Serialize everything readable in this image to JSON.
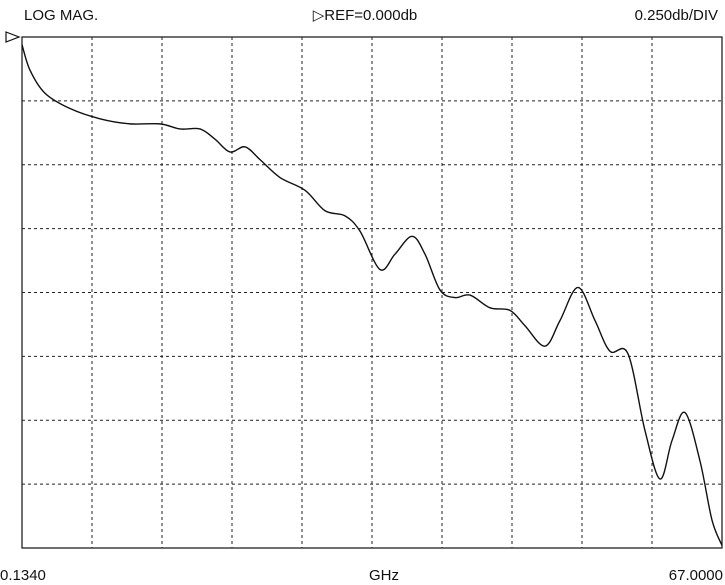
{
  "chart_data": {
    "type": "line",
    "title": "LOG MAG.",
    "reference": "▷REF=0.000db",
    "scale": "0.250db/DIV",
    "xlabel": "GHz",
    "xlim": [
      0.134,
      67.0
    ],
    "xticks": [
      {
        "value": 0.134,
        "label": "0.1340"
      },
      {
        "value": 67.0,
        "label": "67.0000"
      }
    ],
    "ylim": [
      -2.0,
      0.0
    ],
    "grid": {
      "x_divisions": 10,
      "y_divisions": 8
    },
    "color": "#111111",
    "x": [
      0.134,
      0.9,
      2.33,
      4.72,
      7.58,
      10.45,
      13.32,
      15.23,
      17.14,
      18.57,
      20.0,
      21.44,
      22.87,
      24.78,
      27.17,
      29.08,
      30.99,
      32.42,
      34.33,
      35.76,
      37.39,
      38.63,
      40.06,
      41.49,
      42.93,
      44.84,
      46.75,
      48.18,
      50.09,
      51.52,
      53.24,
      54.87,
      56.3,
      58.02,
      59.64,
      61.08,
      62.22,
      63.46,
      64.9,
      66.04,
      67.0
    ],
    "values": [
      -0.03,
      -0.13,
      -0.22,
      -0.28,
      -0.32,
      -0.34,
      -0.34,
      -0.36,
      -0.36,
      -0.4,
      -0.45,
      -0.43,
      -0.48,
      -0.55,
      -0.6,
      -0.68,
      -0.7,
      -0.76,
      -0.91,
      -0.85,
      -0.78,
      -0.85,
      -0.99,
      -1.02,
      -1.01,
      -1.06,
      -1.07,
      -1.13,
      -1.21,
      -1.11,
      -0.98,
      -1.11,
      -1.23,
      -1.24,
      -1.54,
      -1.73,
      -1.58,
      -1.47,
      -1.66,
      -1.89,
      -1.99
    ]
  }
}
